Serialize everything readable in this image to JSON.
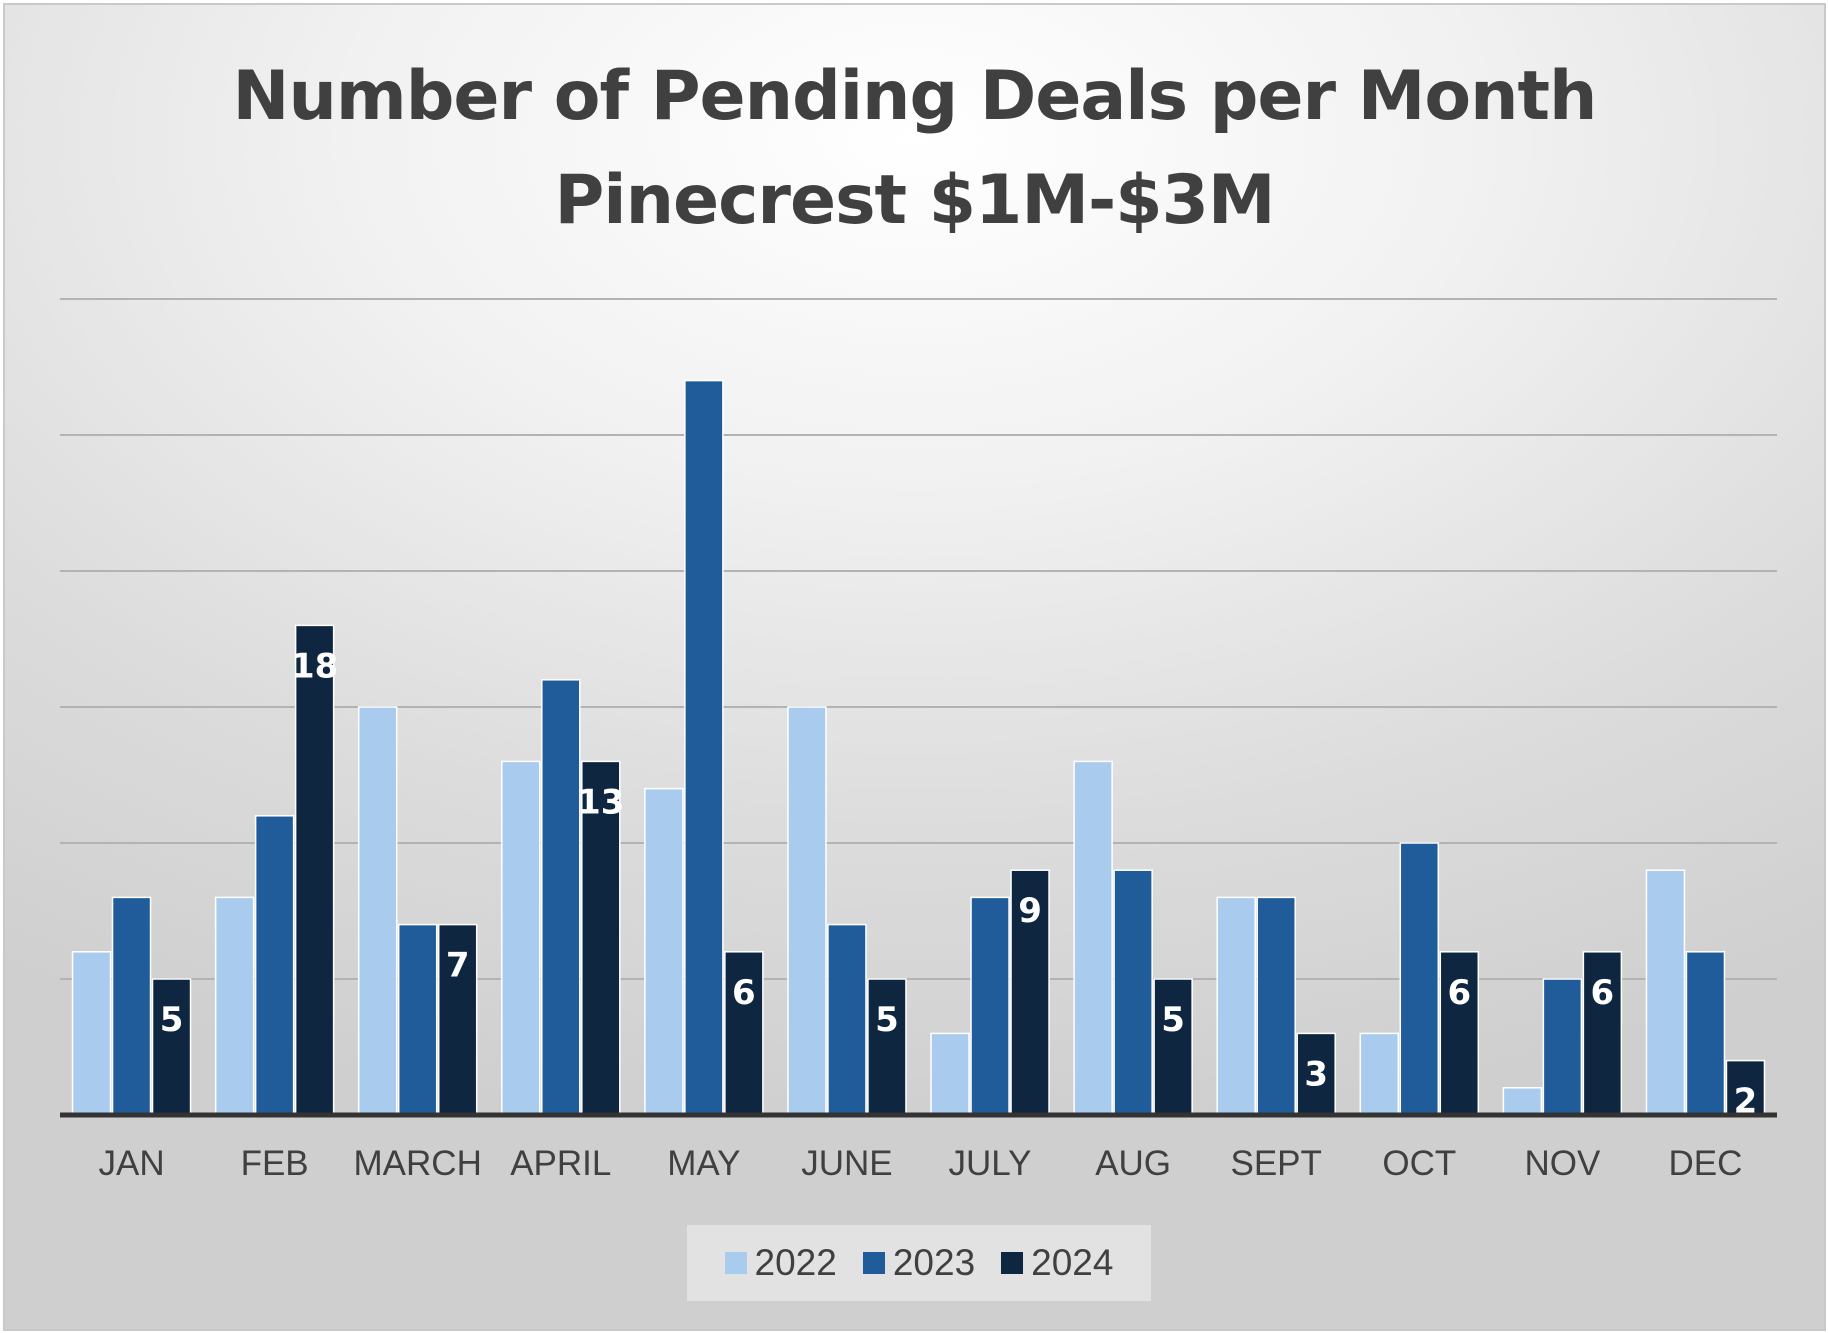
{
  "chart_data": {
    "type": "bar",
    "title": "Number of Pending Deals per Month",
    "subtitle": "Pinecrest $1M-$3M",
    "categories": [
      "JAN",
      "FEB",
      "MARCH",
      "APRIL",
      "MAY",
      "JUNE",
      "JULY",
      "AUG",
      "SEPT",
      "OCT",
      "NOV",
      "DEC"
    ],
    "series": [
      {
        "name": "2022",
        "color": "#a9cbee",
        "values": [
          6,
          8,
          15,
          13,
          12,
          15,
          3,
          13,
          8,
          3,
          1,
          9
        ]
      },
      {
        "name": "2023",
        "color": "#1f5c99",
        "values": [
          8,
          11,
          7,
          16,
          27,
          7,
          8,
          9,
          8,
          10,
          5,
          6
        ]
      },
      {
        "name": "2024",
        "color": "#0e2640",
        "values": [
          5,
          18,
          7,
          13,
          6,
          5,
          9,
          5,
          3,
          6,
          6,
          2
        ],
        "data_labels": true
      }
    ],
    "ylim": [
      0,
      30
    ],
    "gridline_step": 5,
    "y_axis_labels_shown": false,
    "grid": true,
    "legend": "bottom"
  }
}
